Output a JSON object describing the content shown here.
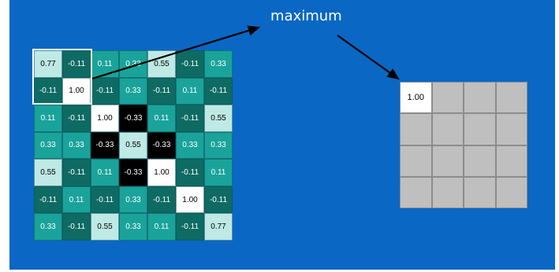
{
  "title": "maximum",
  "colors": {
    "slide_bg": "#0a67c4",
    "teal_dark": "#0e6b63",
    "teal_mid": "#1aa39a",
    "teal_light": "#bfe9e5",
    "black": "#000000",
    "white": "#ffffff",
    "gray": "#bfbfbf"
  },
  "input_grid": [
    [
      "0.77",
      "-0.11",
      "0.11",
      "0.33",
      "0.55",
      "-0.11",
      "0.33"
    ],
    [
      "-0.11",
      "1.00",
      "-0.11",
      "0.33",
      "-0.11",
      "0.11",
      "-0.11"
    ],
    [
      "0.11",
      "-0.11",
      "1.00",
      "-0.33",
      "0.11",
      "-0.11",
      "0.55"
    ],
    [
      "0.33",
      "0.33",
      "-0.33",
      "0.55",
      "-0.33",
      "0.33",
      "0.33"
    ],
    [
      "0.55",
      "-0.11",
      "0.11",
      "-0.33",
      "1.00",
      "-0.11",
      "0.11"
    ],
    [
      "-0.11",
      "0.11",
      "-0.11",
      "0.33",
      "-0.11",
      "1.00",
      "-0.11"
    ],
    [
      "0.33",
      "-0.11",
      "0.55",
      "0.33",
      "0.11",
      "-0.11",
      "0.77"
    ]
  ],
  "output_grid": [
    [
      "1.00",
      "",
      "",
      ""
    ],
    [
      "",
      "",
      "",
      ""
    ],
    [
      "",
      "",
      "",
      ""
    ],
    [
      "",
      "",
      "",
      ""
    ]
  ]
}
